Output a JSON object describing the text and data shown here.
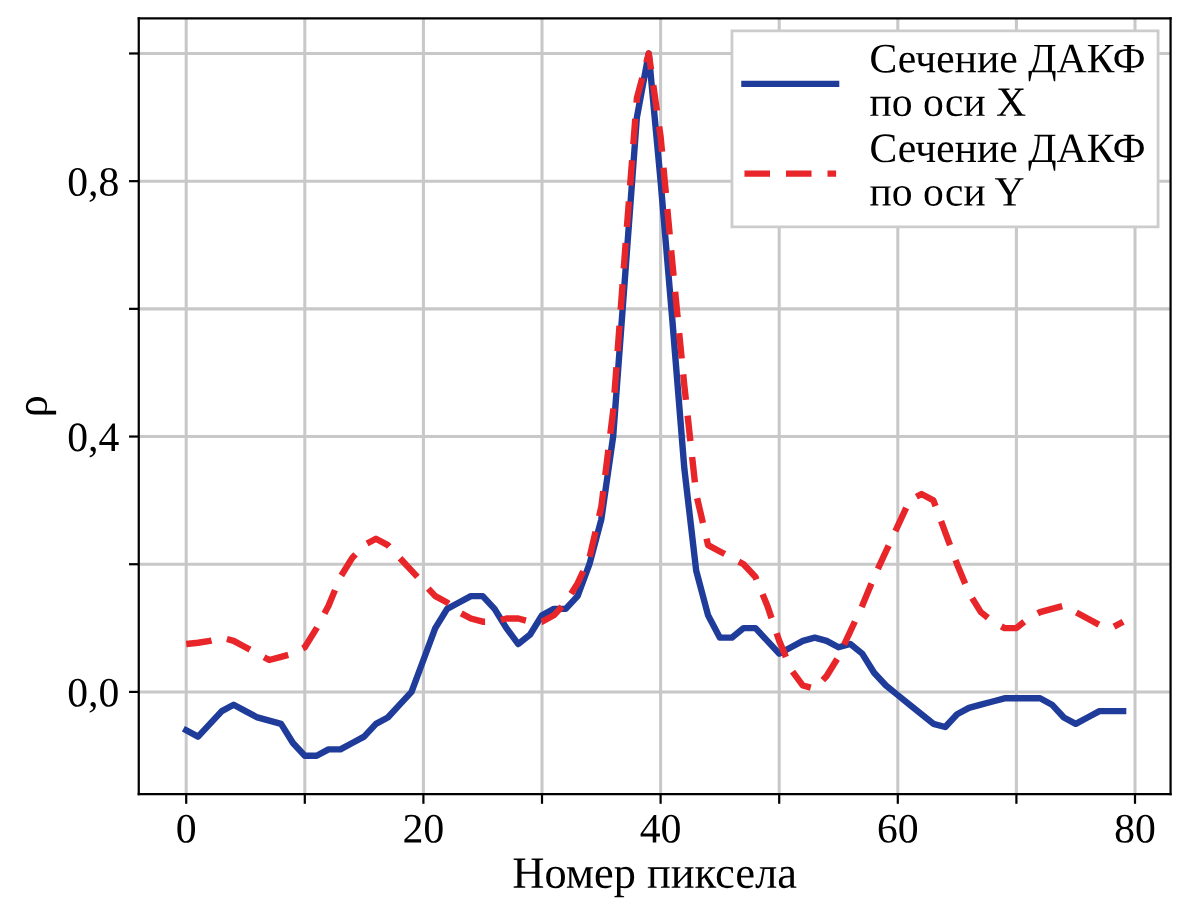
{
  "chart_data": {
    "type": "line",
    "xlabel": "Номер пиксела",
    "ylabel": "ρ",
    "x": [
      0,
      1,
      2,
      3,
      4,
      5,
      6,
      7,
      8,
      9,
      10,
      11,
      12,
      13,
      14,
      15,
      16,
      17,
      18,
      19,
      20,
      21,
      22,
      23,
      24,
      25,
      26,
      27,
      28,
      29,
      30,
      31,
      32,
      33,
      34,
      35,
      36,
      37,
      38,
      39,
      40,
      41,
      42,
      43,
      44,
      45,
      46,
      47,
      48,
      49,
      50,
      51,
      52,
      53,
      54,
      55,
      56,
      57,
      58,
      59,
      60,
      61,
      62,
      63,
      64,
      65,
      66,
      67,
      68,
      69,
      70,
      71,
      72,
      73,
      74,
      75,
      76,
      77,
      78,
      79
    ],
    "series": [
      {
        "name": "Сечение ДАКФ\nпо оси X",
        "color": "#1f3c9a",
        "line_style": "solid",
        "values": [
          -0.06,
          -0.07,
          -0.05,
          -0.03,
          -0.02,
          -0.03,
          -0.04,
          -0.045,
          -0.05,
          -0.08,
          -0.1,
          -0.1,
          -0.09,
          -0.09,
          -0.08,
          -0.07,
          -0.05,
          -0.04,
          -0.02,
          0.0,
          0.05,
          0.1,
          0.13,
          0.14,
          0.15,
          0.15,
          0.13,
          0.1,
          0.075,
          0.09,
          0.12,
          0.13,
          0.13,
          0.15,
          0.2,
          0.27,
          0.4,
          0.65,
          0.9,
          1.0,
          0.8,
          0.58,
          0.35,
          0.19,
          0.12,
          0.085,
          0.085,
          0.1,
          0.1,
          0.08,
          0.06,
          0.07,
          0.08,
          0.085,
          0.08,
          0.07,
          0.075,
          0.06,
          0.03,
          0.01,
          -0.005,
          -0.02,
          -0.035,
          -0.05,
          -0.055,
          -0.035,
          -0.025,
          -0.02,
          -0.015,
          -0.01,
          -0.01,
          -0.01,
          -0.01,
          -0.02,
          -0.04,
          -0.05,
          -0.04,
          -0.03,
          -0.03,
          -0.03
        ]
      },
      {
        "name": "Сечение ДАКФ\nпо оси Y",
        "color": "#e8262a",
        "line_style": "dashed",
        "values": [
          0.075,
          0.077,
          0.08,
          0.085,
          0.08,
          0.07,
          0.06,
          0.05,
          0.055,
          0.06,
          0.07,
          0.1,
          0.135,
          0.18,
          0.21,
          0.23,
          0.24,
          0.23,
          0.21,
          0.19,
          0.17,
          0.15,
          0.14,
          0.125,
          0.115,
          0.11,
          0.11,
          0.115,
          0.115,
          0.11,
          0.11,
          0.12,
          0.14,
          0.17,
          0.21,
          0.29,
          0.44,
          0.69,
          0.93,
          1.0,
          0.87,
          0.67,
          0.48,
          0.31,
          0.23,
          0.22,
          0.21,
          0.2,
          0.18,
          0.135,
          0.08,
          0.035,
          0.01,
          0.005,
          0.025,
          0.055,
          0.095,
          0.135,
          0.18,
          0.22,
          0.26,
          0.3,
          0.31,
          0.3,
          0.25,
          0.2,
          0.155,
          0.125,
          0.11,
          0.1,
          0.1,
          0.115,
          0.125,
          0.13,
          0.135,
          0.125,
          0.115,
          0.105,
          0.1,
          0.11
        ]
      }
    ],
    "xlim": [
      -4,
      83
    ],
    "ylim": [
      -0.16,
      1.055
    ],
    "xticks": [
      0,
      {
        "value": 10,
        "label": null
      },
      20,
      {
        "value": 30,
        "label": null
      },
      40,
      {
        "value": 50,
        "label": null
      },
      60,
      {
        "value": 70,
        "label": null
      },
      80
    ],
    "yticks": [
      {
        "value": 0,
        "label": "0,0"
      },
      {
        "value": 0.2,
        "label": null
      },
      {
        "value": 0.4,
        "label": "0,4"
      },
      {
        "value": 0.6,
        "label": null
      },
      {
        "value": 0.8,
        "label": "0,8"
      },
      {
        "value": 1.0,
        "label": null
      }
    ],
    "grid": true,
    "legend": "top right",
    "marker": "none"
  }
}
